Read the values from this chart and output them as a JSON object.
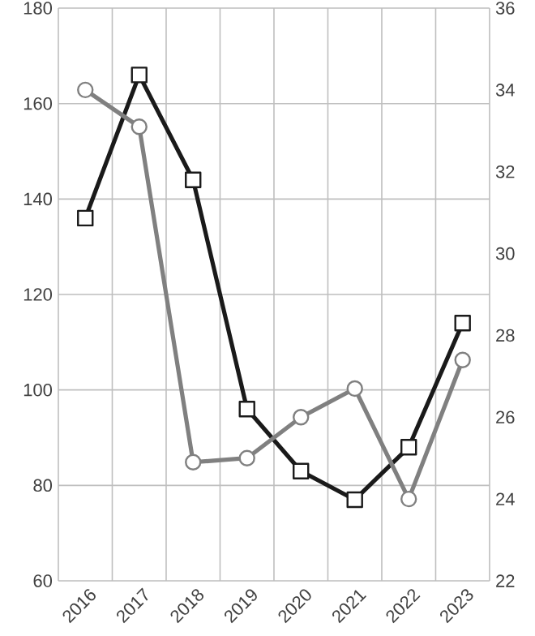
{
  "chart_data": {
    "type": "line",
    "categories": [
      "2016",
      "2017",
      "2018",
      "2019",
      "2020",
      "2021",
      "2022",
      "2023"
    ],
    "series": [
      {
        "color": "#1a1a1a",
        "marker": "square",
        "values": [
          136,
          166,
          144,
          96,
          83,
          77,
          88,
          114
        ]
      },
      {
        "color": "#808080",
        "marker": "circle",
        "axis": "y2",
        "values": [
          34.0,
          33.1,
          24.9,
          25.0,
          26.0,
          26.7,
          24.0,
          27.4
        ]
      }
    ],
    "ylim": [
      60,
      180
    ],
    "yticks": [
      60,
      80,
      100,
      120,
      140,
      160,
      180
    ],
    "y2lim": [
      22,
      36
    ],
    "y2ticks": [
      22,
      24,
      26,
      28,
      30,
      32,
      34,
      36
    ],
    "grid": true
  }
}
